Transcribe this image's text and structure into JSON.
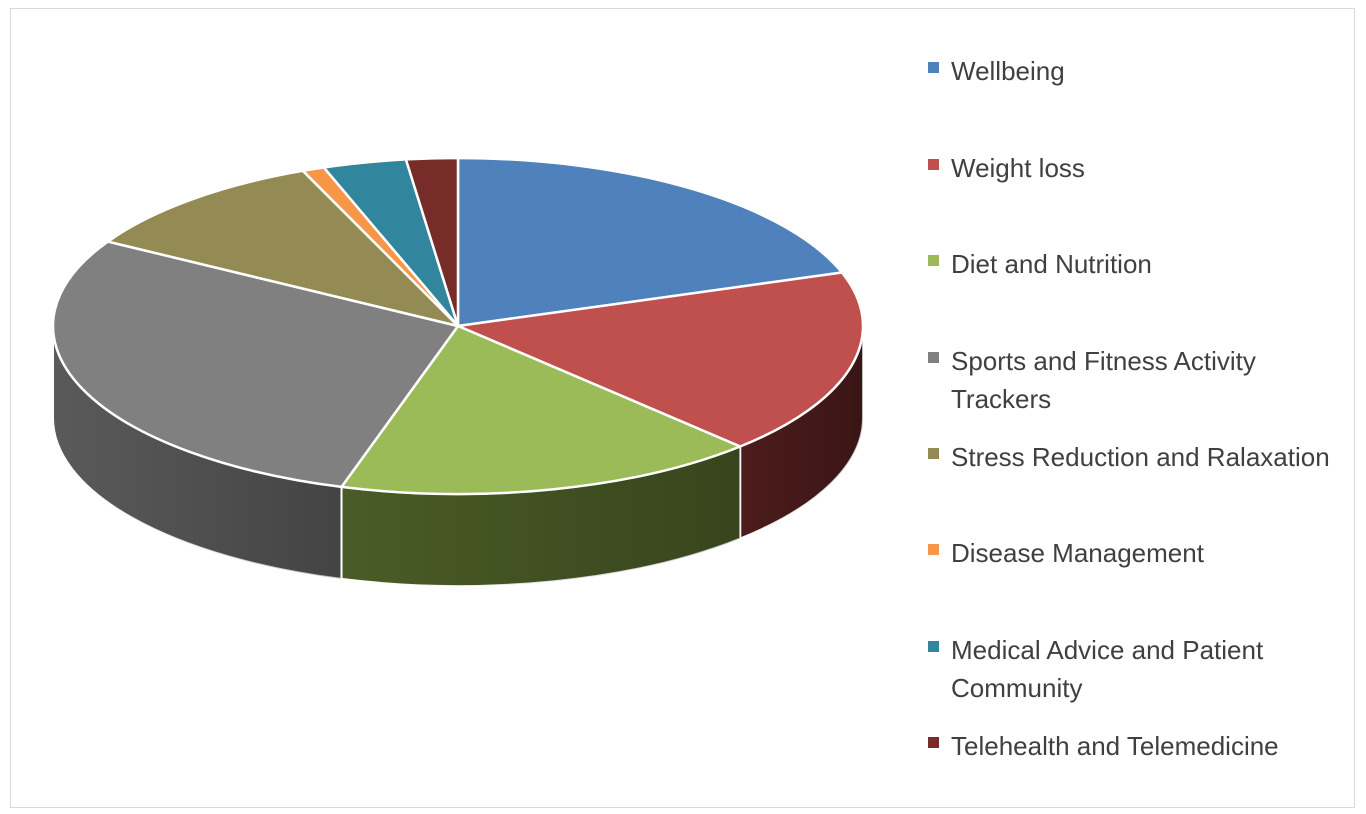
{
  "chart_data": {
    "type": "pie",
    "style": "3d",
    "title": "",
    "legend_position": "right",
    "categories": [
      "Wellbeing",
      "Weight loss",
      "Diet and Nutrition",
      "Sports and Fitness Activity Trackers",
      "Stress Reduction and Ralaxation",
      "Disease Management",
      "Medical Advice and Patient Community",
      "Telehealth and Telemedicine"
    ],
    "values": [
      20.3,
      18.3,
      17.3,
      29.4,
      10.6,
      0.9,
      3.4,
      2.1
    ],
    "unit": "%",
    "colors": [
      "#4f81bd",
      "#c0504d",
      "#9bbb59",
      "#808080",
      "#948a54",
      "#f79646",
      "#31859c",
      "#772c2a"
    ],
    "side_colors": [
      "#2f4d71",
      "#4e1c1c",
      "#4a5c26",
      "#5a5a5a",
      "#5e5733",
      "#a0561a",
      "#1b4f5d",
      "#3f1413"
    ]
  }
}
